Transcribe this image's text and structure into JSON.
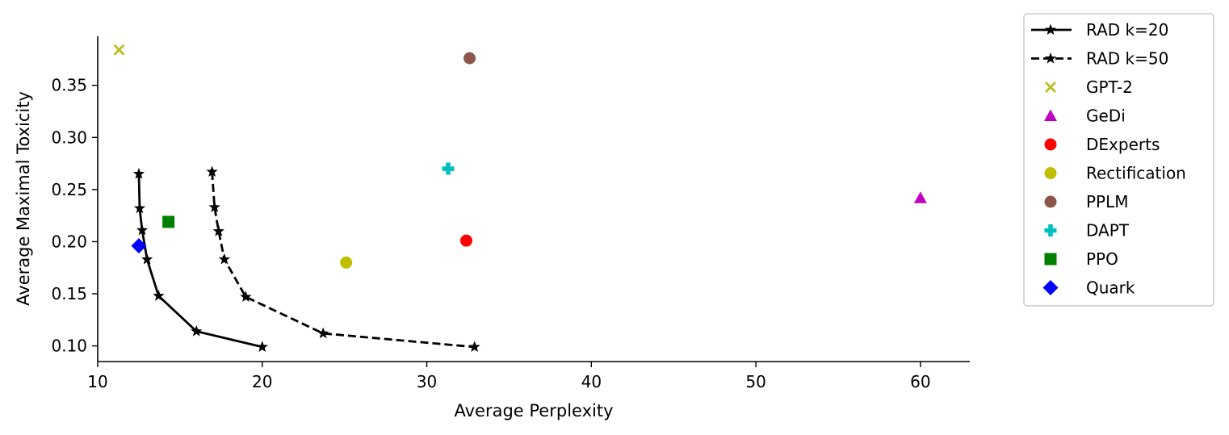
{
  "chart_data": {
    "type": "scatter",
    "xlabel": "Average Perplexity",
    "ylabel": "Average Maximal Toxicity",
    "xlim": [
      10,
      63
    ],
    "ylim": [
      0.085,
      0.397
    ],
    "xticks": [
      10,
      20,
      30,
      40,
      50,
      60
    ],
    "yticks": [
      0.1,
      0.15,
      0.2,
      0.25,
      0.3,
      0.35
    ],
    "grid": false,
    "legend_position": "outside-right",
    "series": [
      {
        "name": "RAD k=20",
        "kind": "line",
        "line_style": "solid",
        "marker": "star",
        "color": "#000000",
        "points": [
          {
            "x": 12.5,
            "y": 0.265
          },
          {
            "x": 12.55,
            "y": 0.232
          },
          {
            "x": 12.7,
            "y": 0.211
          },
          {
            "x": 13.0,
            "y": 0.183
          },
          {
            "x": 13.7,
            "y": 0.148
          },
          {
            "x": 16.0,
            "y": 0.114
          },
          {
            "x": 20.0,
            "y": 0.099
          }
        ]
      },
      {
        "name": "RAD k=50",
        "kind": "line",
        "line_style": "dashed",
        "marker": "star",
        "color": "#000000",
        "points": [
          {
            "x": 16.95,
            "y": 0.267
          },
          {
            "x": 17.1,
            "y": 0.233
          },
          {
            "x": 17.35,
            "y": 0.21
          },
          {
            "x": 17.7,
            "y": 0.183
          },
          {
            "x": 19.0,
            "y": 0.147
          },
          {
            "x": 23.7,
            "y": 0.112
          },
          {
            "x": 32.9,
            "y": 0.099
          }
        ]
      },
      {
        "name": "GPT-2",
        "kind": "point",
        "marker": "x",
        "color": "#bcbd22",
        "points": [
          {
            "x": 11.3,
            "y": 0.384
          }
        ]
      },
      {
        "name": "GeDi",
        "kind": "point",
        "marker": "triangle",
        "color": "#c000c0",
        "points": [
          {
            "x": 60.0,
            "y": 0.242
          }
        ]
      },
      {
        "name": "DExperts",
        "kind": "point",
        "marker": "circle",
        "color": "#ff0000",
        "points": [
          {
            "x": 32.4,
            "y": 0.201
          }
        ]
      },
      {
        "name": "Rectification",
        "kind": "point",
        "marker": "circle",
        "color": "#bfbf00",
        "points": [
          {
            "x": 25.1,
            "y": 0.18
          }
        ]
      },
      {
        "name": "PPLM",
        "kind": "point",
        "marker": "circle",
        "color": "#8c564b",
        "points": [
          {
            "x": 32.6,
            "y": 0.376
          }
        ]
      },
      {
        "name": "DAPT",
        "kind": "point",
        "marker": "plus",
        "color": "#00bfbf",
        "points": [
          {
            "x": 31.3,
            "y": 0.27
          }
        ]
      },
      {
        "name": "PPO",
        "kind": "point",
        "marker": "square",
        "color": "#008000",
        "points": [
          {
            "x": 14.3,
            "y": 0.219
          }
        ]
      },
      {
        "name": "Quark",
        "kind": "point",
        "marker": "diamond",
        "color": "#0000ff",
        "points": [
          {
            "x": 12.5,
            "y": 0.196
          }
        ]
      }
    ]
  }
}
